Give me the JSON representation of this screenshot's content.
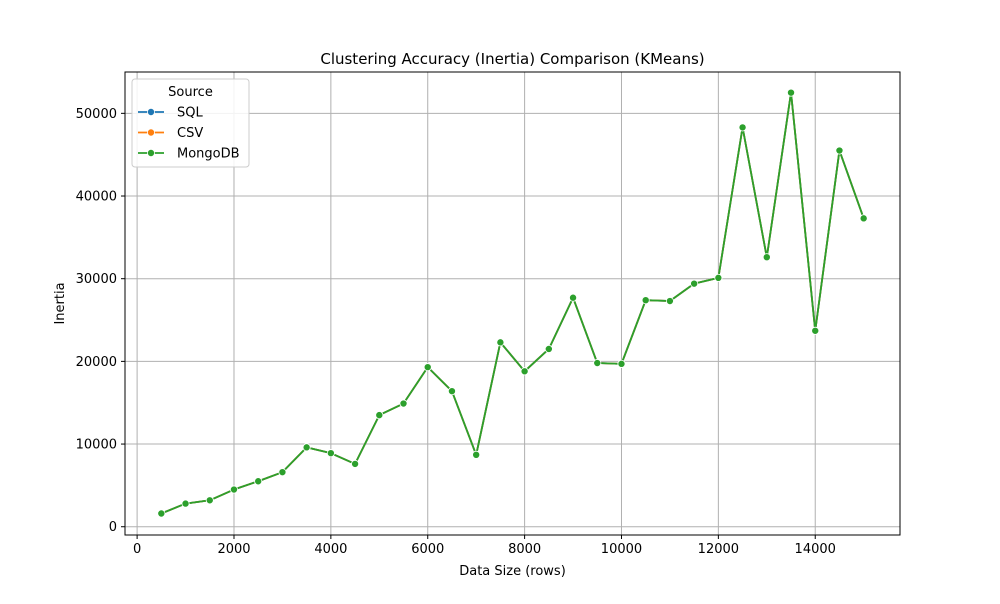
{
  "chart_data": {
    "type": "line",
    "title": "Clustering Accuracy (Inertia) Comparison (KMeans)",
    "xlabel": "Data Size (rows)",
    "ylabel": "Inertia",
    "xlim": [
      -250,
      15750
    ],
    "ylim": [
      -1000,
      55000
    ],
    "xticks": [
      0,
      2000,
      4000,
      6000,
      8000,
      10000,
      12000,
      14000
    ],
    "yticks": [
      0,
      10000,
      20000,
      30000,
      40000,
      50000
    ],
    "grid": true,
    "legend": {
      "title": "Source",
      "placement": "top-left",
      "entries": [
        "SQL",
        "CSV",
        "MongoDB"
      ]
    },
    "x": [
      500,
      1000,
      1500,
      2000,
      2500,
      3000,
      3500,
      4000,
      4500,
      5000,
      5500,
      6000,
      6500,
      7000,
      7500,
      8000,
      8500,
      9000,
      9500,
      10000,
      10500,
      11000,
      11500,
      12000,
      12500,
      13000,
      13500,
      14000,
      14500,
      15000
    ],
    "series": [
      {
        "name": "SQL",
        "color": "#1f77b4",
        "values": [
          1600,
          2800,
          3200,
          4500,
          5500,
          6600,
          9600,
          8900,
          7600,
          13500,
          14900,
          19300,
          16400,
          8700,
          22300,
          18800,
          21500,
          27700,
          19800,
          19700,
          27400,
          27300,
          29400,
          30100,
          48300,
          32600,
          52500,
          23700,
          45500,
          37300
        ]
      },
      {
        "name": "CSV",
        "color": "#ff7f0e",
        "values": [
          1600,
          2800,
          3200,
          4500,
          5500,
          6600,
          9600,
          8900,
          7600,
          13500,
          14900,
          19300,
          16400,
          8700,
          22300,
          18800,
          21500,
          27700,
          19800,
          19700,
          27400,
          27300,
          29400,
          30100,
          48300,
          32600,
          52500,
          23700,
          45500,
          37300
        ]
      },
      {
        "name": "MongoDB",
        "color": "#2ca02c",
        "values": [
          1600,
          2800,
          3200,
          4500,
          5500,
          6600,
          9600,
          8900,
          7600,
          13500,
          14900,
          19300,
          16400,
          8700,
          22300,
          18800,
          21500,
          27700,
          19800,
          19700,
          27400,
          27300,
          29400,
          30100,
          48300,
          32600,
          52500,
          23700,
          45500,
          37300
        ]
      }
    ]
  }
}
